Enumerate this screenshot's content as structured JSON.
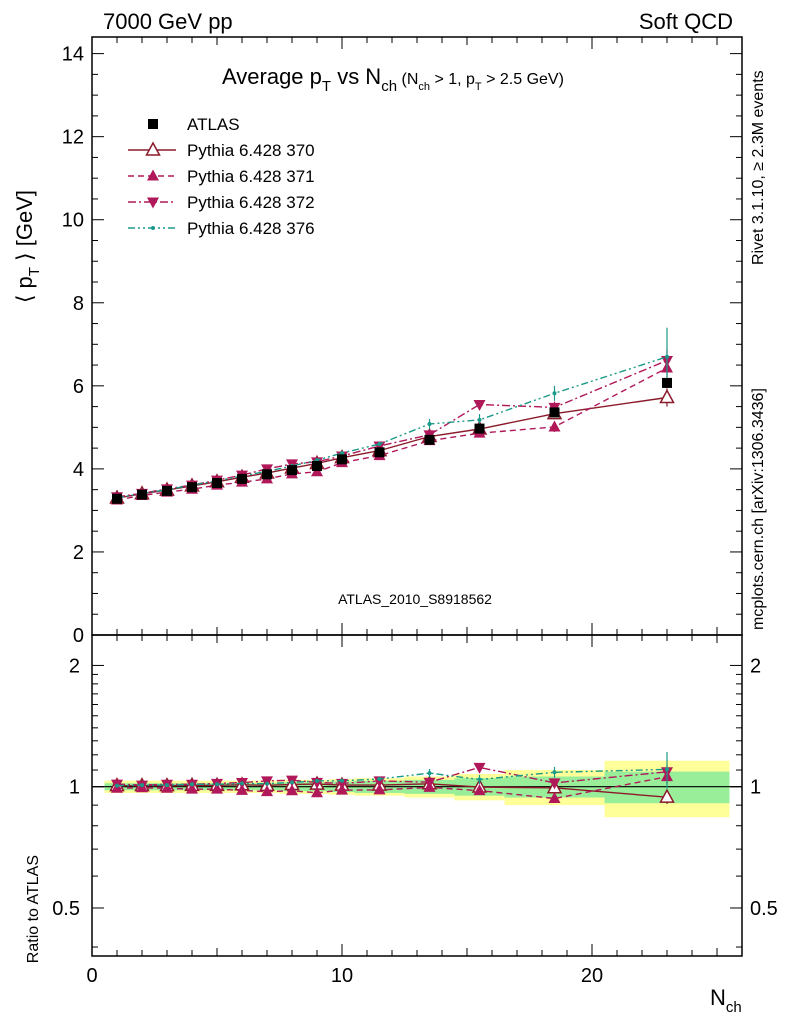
{
  "header": {
    "left": "7000 GeV pp",
    "right": "Soft QCD"
  },
  "side_labels": {
    "rivet": "Rivet 3.1.10, ≥ 2.3M events",
    "mcplots": "mcplots.cern.ch [arXiv:1306.3436]"
  },
  "title": {
    "main_a": "Average p",
    "main_a_sub": "T",
    "main_b": " vs N",
    "main_b_sub": "ch",
    "cond_a": " (N",
    "cond_a_sub": "ch",
    "cond_b": " > 1, p",
    "cond_b_sub": "T",
    "cond_c": " > 2.5 GeV)"
  },
  "analysis_tag": "ATLAS_2010_S8918562",
  "chart_data": [
    {
      "type": "line",
      "panel": "main",
      "ylabel": {
        "pre": "⟨ p",
        "sub": "T",
        "post": " ⟩  [GeV]"
      },
      "xlim": [
        0,
        26
      ],
      "ylim": [
        0,
        14.4
      ],
      "xticks": [
        0,
        10,
        20
      ],
      "yticks": [
        0,
        2,
        4,
        6,
        8,
        10,
        12,
        14
      ],
      "legend_position": "top-left",
      "series": [
        {
          "name": "ATLAS",
          "style": "data",
          "color": "#000000",
          "marker": "square",
          "x": [
            1,
            2,
            3,
            4,
            5,
            6,
            7,
            8,
            9,
            10,
            11.5,
            13.5,
            15.5,
            18.5,
            23
          ],
          "y": [
            3.28,
            3.38,
            3.47,
            3.56,
            3.66,
            3.76,
            3.87,
            3.97,
            4.07,
            4.23,
            4.4,
            4.7,
            4.97,
            5.36,
            6.07
          ]
        },
        {
          "name": "Pythia 6.428 370",
          "style": "solid",
          "color": "#8b1a2b",
          "marker": "open-triangle-up",
          "x": [
            1,
            2,
            3,
            4,
            5,
            6,
            7,
            8,
            9,
            10,
            11.5,
            13.5,
            15.5,
            18.5,
            23
          ],
          "y": [
            3.3,
            3.4,
            3.49,
            3.59,
            3.69,
            3.8,
            3.9,
            4.02,
            4.13,
            4.27,
            4.44,
            4.78,
            4.96,
            5.33,
            5.72
          ]
        },
        {
          "name": "Pythia 6.428 371",
          "style": "dashed",
          "color": "#b0185a",
          "marker": "filled-triangle-up",
          "x": [
            1,
            2,
            3,
            4,
            5,
            6,
            7,
            8,
            9,
            10,
            11.5,
            13.5,
            15.5,
            18.5,
            23
          ],
          "y": [
            3.25,
            3.36,
            3.44,
            3.51,
            3.61,
            3.68,
            3.76,
            3.88,
            3.93,
            4.15,
            4.32,
            4.68,
            4.86,
            5.01,
            6.43
          ]
        },
        {
          "name": "Pythia 6.428 372",
          "style": "dash-dot",
          "color": "#b0185a",
          "marker": "filled-triangle-down",
          "x": [
            1,
            2,
            3,
            4,
            5,
            6,
            7,
            8,
            9,
            10,
            11.5,
            13.5,
            15.5,
            18.5,
            23
          ],
          "y": [
            3.33,
            3.41,
            3.52,
            3.61,
            3.73,
            3.85,
            4.0,
            4.12,
            4.17,
            4.31,
            4.55,
            4.82,
            5.55,
            5.48,
            6.61
          ]
        },
        {
          "name": "Pythia 6.428 376",
          "style": "dash-dot-dot",
          "color": "#1a9a88",
          "marker": "small-dot",
          "x": [
            1,
            2,
            3,
            4,
            5,
            6,
            7,
            8,
            9,
            10,
            11.5,
            13.5,
            15.5,
            18.5,
            23
          ],
          "y": [
            3.3,
            3.41,
            3.5,
            3.61,
            3.71,
            3.83,
            3.94,
            4.07,
            4.21,
            4.38,
            4.6,
            5.08,
            5.18,
            5.82,
            6.7
          ]
        }
      ],
      "errors_y": {
        "Pythia 6.428 370": [
          0.02,
          0.02,
          0.02,
          0.02,
          0.02,
          0.02,
          0.03,
          0.03,
          0.03,
          0.03,
          0.04,
          0.06,
          0.08,
          0.12,
          0.22
        ],
        "Pythia 6.428 371": [
          0.02,
          0.02,
          0.02,
          0.02,
          0.02,
          0.02,
          0.03,
          0.03,
          0.03,
          0.03,
          0.04,
          0.06,
          0.08,
          0.12,
          0.25
        ],
        "Pythia 6.428 372": [
          0.02,
          0.02,
          0.02,
          0.02,
          0.02,
          0.02,
          0.03,
          0.03,
          0.03,
          0.03,
          0.04,
          0.06,
          0.1,
          0.14,
          0.28
        ],
        "Pythia 6.428 376": [
          0.02,
          0.02,
          0.02,
          0.02,
          0.02,
          0.02,
          0.03,
          0.03,
          0.03,
          0.03,
          0.05,
          0.12,
          0.14,
          0.18,
          0.7
        ]
      }
    },
    {
      "type": "line",
      "panel": "ratio",
      "ylabel": "Ratio to ATLAS",
      "xlabel": {
        "pre": "N",
        "sub": "ch"
      },
      "xlim": [
        0,
        26
      ],
      "ylim": [
        0.38,
        2.38
      ],
      "yticks": [
        0.5,
        1,
        2
      ],
      "bins": [
        [
          0.5,
          1.5
        ],
        [
          1.5,
          2.5
        ],
        [
          2.5,
          3.5
        ],
        [
          3.5,
          4.5
        ],
        [
          4.5,
          5.5
        ],
        [
          5.5,
          6.5
        ],
        [
          6.5,
          7.5
        ],
        [
          7.5,
          8.5
        ],
        [
          8.5,
          9.5
        ],
        [
          9.5,
          10.5
        ],
        [
          10.5,
          12.5
        ],
        [
          12.5,
          14.5
        ],
        [
          14.5,
          16.5
        ],
        [
          16.5,
          20.5
        ],
        [
          20.5,
          25.5
        ]
      ],
      "band_inner": [
        0.02,
        0.02,
        0.02,
        0.02,
        0.02,
        0.02,
        0.02,
        0.025,
        0.025,
        0.03,
        0.035,
        0.04,
        0.05,
        0.06,
        0.09
      ],
      "band_outer": [
        0.035,
        0.035,
        0.035,
        0.035,
        0.035,
        0.035,
        0.035,
        0.04,
        0.04,
        0.045,
        0.05,
        0.06,
        0.075,
        0.1,
        0.16
      ],
      "band_colors": {
        "inner": "#99ee99",
        "outer": "#ffff99"
      },
      "x": [
        1,
        2,
        3,
        4,
        5,
        6,
        7,
        8,
        9,
        10,
        11.5,
        13.5,
        15.5,
        18.5,
        23
      ],
      "series": [
        {
          "name": "Pythia 6.428 370",
          "values": [
            1.006,
            1.006,
            1.006,
            1.008,
            1.008,
            1.011,
            1.008,
            1.013,
            1.015,
            1.009,
            1.009,
            1.017,
            0.998,
            0.994,
            0.942
          ]
        },
        {
          "name": "Pythia 6.428 371",
          "values": [
            0.991,
            0.994,
            0.991,
            0.986,
            0.986,
            0.979,
            0.972,
            0.977,
            0.966,
            0.981,
            0.982,
            0.996,
            0.978,
            0.935,
            1.059
          ]
        },
        {
          "name": "Pythia 6.428 372",
          "values": [
            1.015,
            1.009,
            1.014,
            1.014,
            1.019,
            1.024,
            1.034,
            1.038,
            1.025,
            1.019,
            1.034,
            1.026,
            1.117,
            1.022,
            1.089
          ]
        },
        {
          "name": "Pythia 6.428 376",
          "values": [
            1.006,
            1.009,
            1.009,
            1.014,
            1.014,
            1.019,
            1.018,
            1.025,
            1.034,
            1.035,
            1.045,
            1.081,
            1.042,
            1.086,
            1.104
          ]
        }
      ]
    }
  ]
}
